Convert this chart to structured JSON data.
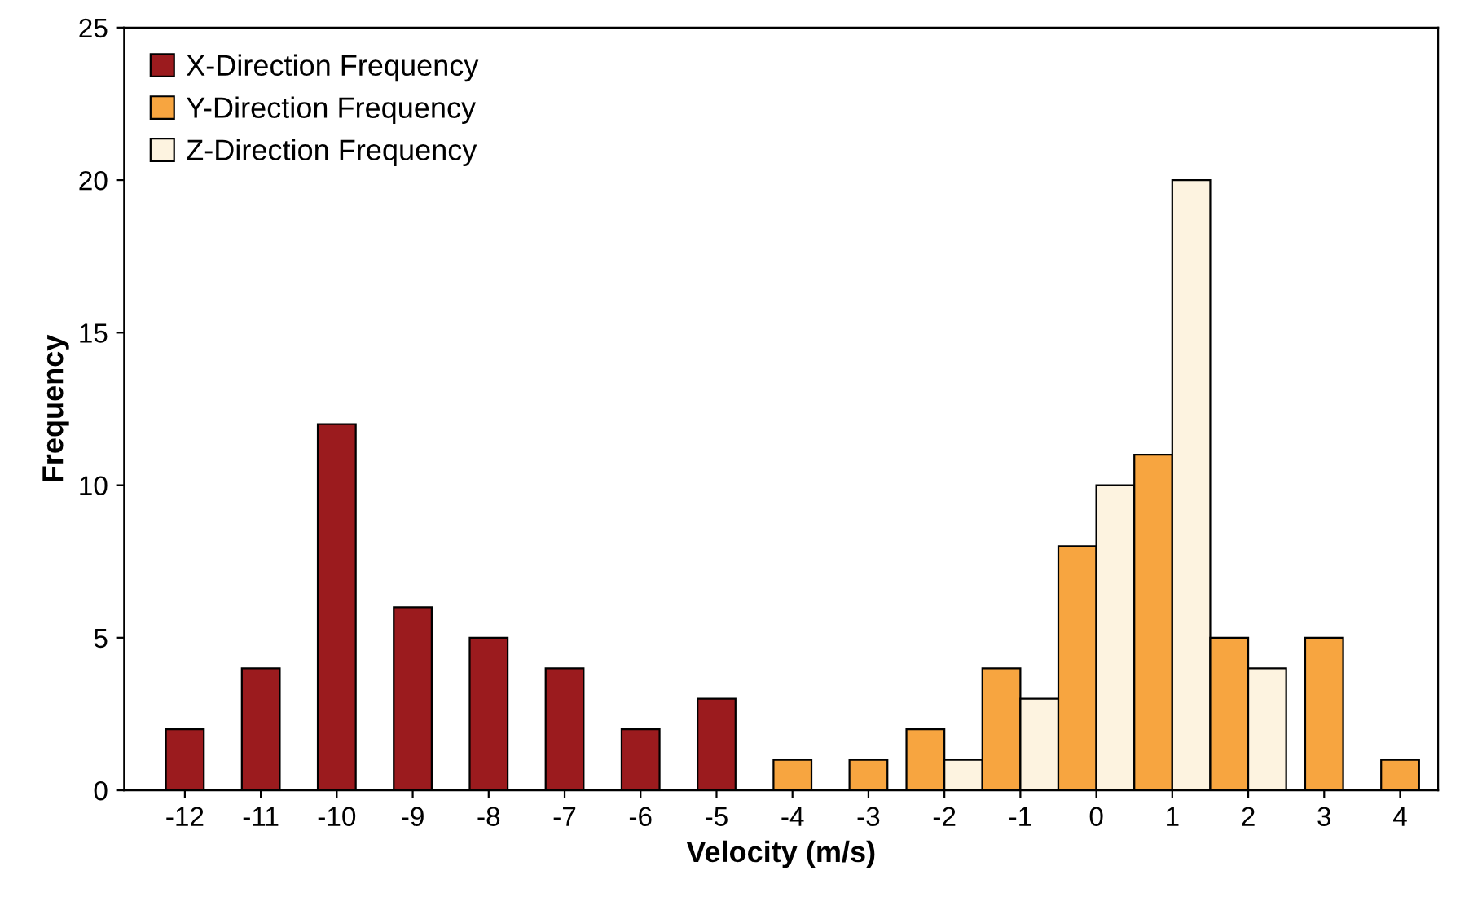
{
  "chart_data": {
    "type": "bar",
    "xlabel": "Velocity (m/s)",
    "ylabel": "Frequency",
    "categories": [
      "-12",
      "-11",
      "-10",
      "-9",
      "-8",
      "-7",
      "-6",
      "-5",
      "-4",
      "-3",
      "-2",
      "-1",
      "0",
      "1",
      "2",
      "3",
      "4"
    ],
    "series": [
      {
        "name": "X-Direction Frequency",
        "color": "#9b1b1e",
        "values": [
          2,
          4,
          12,
          6,
          5,
          4,
          2,
          3,
          null,
          null,
          null,
          null,
          null,
          null,
          null,
          null,
          null
        ]
      },
      {
        "name": "Y-Direction Frequency",
        "color": "#f7a540",
        "values": [
          null,
          null,
          null,
          null,
          null,
          null,
          null,
          null,
          1,
          1,
          2,
          4,
          8,
          11,
          5,
          5,
          1
        ]
      },
      {
        "name": "Z-Direction Frequency",
        "color": "#fdf3e0",
        "values": [
          null,
          null,
          null,
          null,
          null,
          null,
          null,
          null,
          null,
          null,
          1,
          3,
          10,
          20,
          4,
          null,
          null
        ]
      }
    ],
    "ylim": [
      0,
      25
    ],
    "yticks": [
      0,
      5,
      10,
      15,
      20,
      25
    ],
    "grid": false,
    "legend": "top left"
  }
}
